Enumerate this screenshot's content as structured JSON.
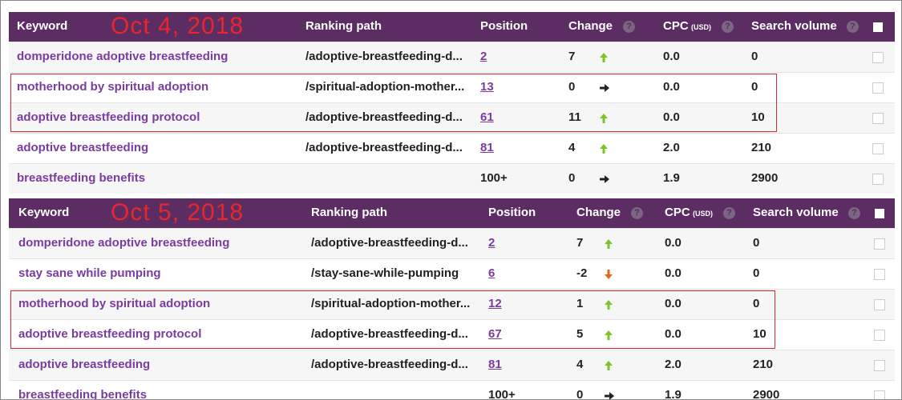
{
  "help_icon": "?",
  "tables": [
    {
      "date_label": "Oct 4, 2018",
      "headers": {
        "keyword": "Keyword",
        "path": "Ranking path",
        "position": "Position",
        "change": "Change",
        "cpc": "CPC",
        "cpc_unit": "(USD)",
        "volume": "Search volume"
      },
      "rows": [
        {
          "keyword": "domperidone adoptive breastfeeding",
          "path": "/adoptive-breastfeeding-d...",
          "position": "2",
          "position_link": true,
          "change": "7",
          "trend": "up",
          "cpc": "0.0",
          "volume": "0",
          "highlighted": false
        },
        {
          "keyword": "motherhood by spiritual adoption",
          "path": "/spiritual-adoption-mother...",
          "position": "13",
          "position_link": true,
          "change": "0",
          "trend": "flat",
          "cpc": "0.0",
          "volume": "0",
          "highlighted": true
        },
        {
          "keyword": "adoptive breastfeeding protocol",
          "path": "/adoptive-breastfeeding-d...",
          "position": "61",
          "position_link": true,
          "change": "11",
          "trend": "up",
          "cpc": "0.0",
          "volume": "10",
          "highlighted": true
        },
        {
          "keyword": "adoptive breastfeeding",
          "path": "/adoptive-breastfeeding-d...",
          "position": "81",
          "position_link": true,
          "change": "4",
          "trend": "up",
          "cpc": "2.0",
          "volume": "210",
          "highlighted": false
        },
        {
          "keyword": "breastfeeding benefits",
          "path": null,
          "position": "100+",
          "position_link": false,
          "change": "0",
          "trend": "flat",
          "cpc": "1.9",
          "volume": "2900",
          "highlighted": false
        }
      ]
    },
    {
      "date_label": "Oct 5, 2018",
      "headers": {
        "keyword": "Keyword",
        "path": "Ranking path",
        "position": "Position",
        "change": "Change",
        "cpc": "CPC",
        "cpc_unit": "(USD)",
        "volume": "Search volume"
      },
      "rows": [
        {
          "keyword": "domperidone adoptive breastfeeding",
          "path": "/adoptive-breastfeeding-d...",
          "position": "2",
          "position_link": true,
          "change": "7",
          "trend": "up",
          "cpc": "0.0",
          "volume": "0",
          "highlighted": false
        },
        {
          "keyword": "stay sane while pumping",
          "path": "/stay-sane-while-pumping",
          "position": "6",
          "position_link": true,
          "change": "-2",
          "trend": "down",
          "cpc": "0.0",
          "volume": "0",
          "highlighted": false
        },
        {
          "keyword": "motherhood by spiritual adoption",
          "path": "/spiritual-adoption-mother...",
          "position": "12",
          "position_link": true,
          "change": "1",
          "trend": "up",
          "cpc": "0.0",
          "volume": "0",
          "highlighted": true
        },
        {
          "keyword": "adoptive breastfeeding protocol",
          "path": "/adoptive-breastfeeding-d...",
          "position": "67",
          "position_link": true,
          "change": "5",
          "trend": "up",
          "cpc": "0.0",
          "volume": "10",
          "highlighted": true
        },
        {
          "keyword": "adoptive breastfeeding",
          "path": "/adoptive-breastfeeding-d...",
          "position": "81",
          "position_link": true,
          "change": "4",
          "trend": "up",
          "cpc": "2.0",
          "volume": "210",
          "highlighted": false
        },
        {
          "keyword": "breastfeeding benefits",
          "path": null,
          "position": "100+",
          "position_link": false,
          "change": "0",
          "trend": "flat",
          "cpc": "1.9",
          "volume": "2900",
          "highlighted": false
        }
      ]
    }
  ]
}
